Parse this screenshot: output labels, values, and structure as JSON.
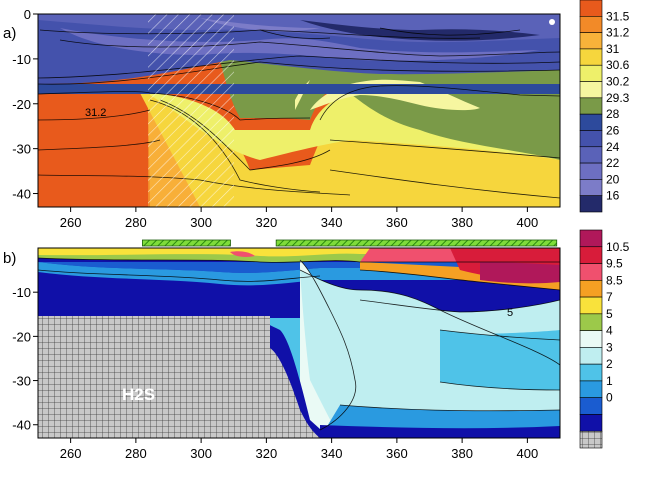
{
  "chart_data": [
    {
      "type": "heatmap",
      "panel_label": "a)",
      "x_ticks": [
        260,
        280,
        300,
        320,
        340,
        360,
        380,
        400
      ],
      "y_ticks": [
        0,
        -10,
        -20,
        -30,
        -40
      ],
      "xlim": [
        250,
        410
      ],
      "ylim": [
        -43,
        0
      ],
      "contour_label": "31.2",
      "colorbar_ticks": [
        "31.5",
        "31.2",
        "31",
        "30.6",
        "30.2",
        "29.3",
        "28",
        "26",
        "24",
        "22",
        "20",
        "16"
      ],
      "colors": [
        "#e85a1c",
        "#f28a28",
        "#f8b23a",
        "#f6d63d",
        "#eef06a",
        "#f6f6a0",
        "#7a9a48",
        "#2d4a9c",
        "#4452ac",
        "#5a62b8",
        "#6d6fc2",
        "#7c7cc8",
        "#232a6a"
      ],
      "hatched_x_range": [
        282,
        310
      ],
      "layers": [
        {
          "depth": [
            -3,
            -16
          ],
          "x": [
            250,
            410
          ],
          "value": "20-24"
        },
        {
          "depth": [
            -16,
            -19
          ],
          "x": [
            250,
            410
          ],
          "value": "28"
        },
        {
          "depth": [
            -19,
            -43
          ],
          "x": [
            250,
            282
          ],
          "value": "31.2-31.5"
        },
        {
          "depth": [
            -19,
            -43
          ],
          "x": [
            282,
            335
          ],
          "value": "30.2-31"
        },
        {
          "depth": [
            -12,
            -35
          ],
          "x": [
            335,
            410
          ],
          "value": "29.3-30.6"
        }
      ]
    },
    {
      "type": "heatmap",
      "panel_label": "b)",
      "x_ticks": [
        260,
        280,
        300,
        320,
        340,
        360,
        380,
        400
      ],
      "y_ticks": [
        -10,
        -20,
        -30,
        -40
      ],
      "xlim": [
        250,
        410
      ],
      "ylim": [
        -43,
        0
      ],
      "region_label": "H2S",
      "contour_label": "5",
      "colorbar_ticks": [
        "10.5",
        "9.5",
        "8.5",
        "7",
        "5",
        "4",
        "3",
        "2",
        "1",
        "0"
      ],
      "colors": [
        "#b0185a",
        "#d81c3a",
        "#f0506e",
        "#f5a023",
        "#f9e23b",
        "#9cc94a",
        "#eafaf5",
        "#bfeef0",
        "#4fc3e8",
        "#2a9ae0",
        "#1a5cd0",
        "#1010a8",
        "#c0c0c0"
      ],
      "green_bars_x": [
        [
          282,
          309
        ],
        [
          323,
          409
        ]
      ],
      "h2s_region": {
        "x": [
          250,
          334
        ],
        "depth": [
          -16,
          -43
        ]
      }
    }
  ]
}
